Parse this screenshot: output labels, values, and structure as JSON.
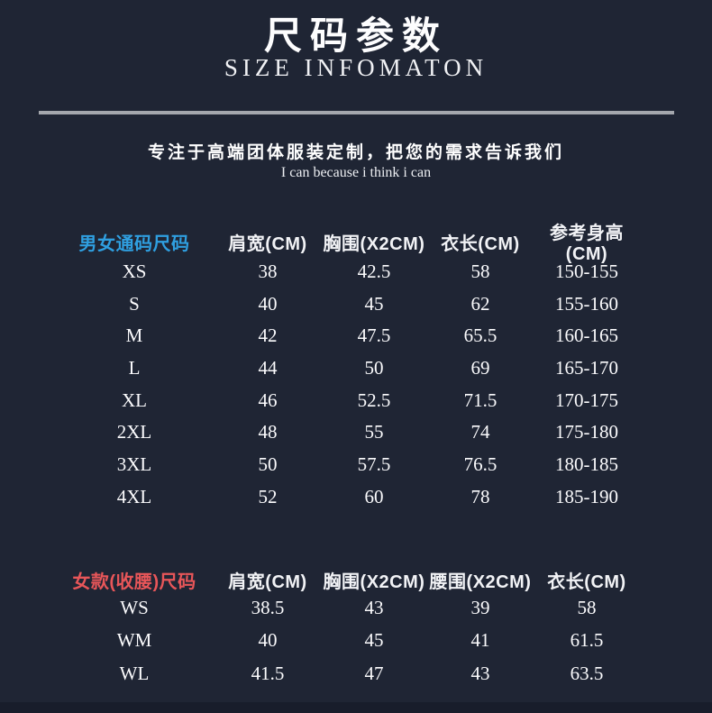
{
  "header": {
    "title": "尺码参数",
    "subtitle": "SIZE INFOMATON"
  },
  "tagline": {
    "main": "专注于高端团体服装定制，把您的需求告诉我们",
    "motto": "I can because i think i can"
  },
  "colors": {
    "background": "#1f2534",
    "unisex_label": "#2f9fe0",
    "women_label": "#e85659",
    "divider": "#a4a7ad",
    "bottom_bar": "#181d2b",
    "text": "#ffffff"
  },
  "unisex_table": {
    "label": "男女通码尺码",
    "headers": [
      "肩宽(CM)",
      "胸围(X2CM)",
      "衣长(CM)",
      "参考身高(CM)"
    ],
    "rows": [
      [
        "XS",
        "38",
        "42.5",
        "58",
        "150-155"
      ],
      [
        "S",
        "40",
        "45",
        "62",
        "155-160"
      ],
      [
        "M",
        "42",
        "47.5",
        "65.5",
        "160-165"
      ],
      [
        "L",
        "44",
        "50",
        "69",
        "165-170"
      ],
      [
        "XL",
        "46",
        "52.5",
        "71.5",
        "170-175"
      ],
      [
        "2XL",
        "48",
        "55",
        "74",
        "175-180"
      ],
      [
        "3XL",
        "50",
        "57.5",
        "76.5",
        "180-185"
      ],
      [
        "4XL",
        "52",
        "60",
        "78",
        "185-190"
      ]
    ]
  },
  "women_table": {
    "label": "女款(收腰)尺码",
    "headers": [
      "肩宽(CM)",
      "胸围(X2CM)",
      "腰围(X2CM)",
      "衣长(CM)"
    ],
    "rows": [
      [
        "WS",
        "38.5",
        "43",
        "39",
        "58"
      ],
      [
        "WM",
        "40",
        "45",
        "41",
        "61.5"
      ],
      [
        "WL",
        "41.5",
        "47",
        "43",
        "63.5"
      ]
    ]
  }
}
